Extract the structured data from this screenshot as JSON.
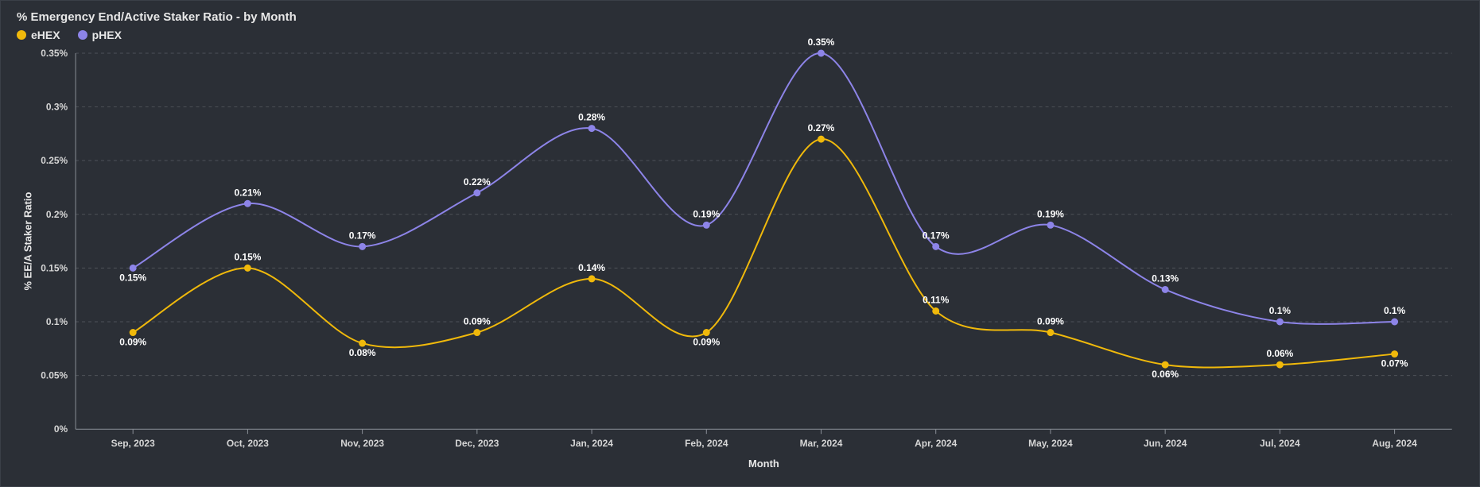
{
  "title": "% Emergency End/Active Staker Ratio - by Month",
  "legend": [
    {
      "key": "eHEX",
      "label": "eHEX",
      "color": "#f0b90b"
    },
    {
      "key": "pHEX",
      "label": "pHEX",
      "color": "#8d84e8"
    }
  ],
  "background_color": "#2b2f36",
  "grid_color": "#6b6f76",
  "text_color": "#e8e8e8",
  "x_axis": {
    "title": "Month",
    "categories": [
      "Sep, 2023",
      "Oct, 2023",
      "Nov, 2023",
      "Dec, 2023",
      "Jan, 2024",
      "Feb, 2024",
      "Mar, 2024",
      "Apr, 2024",
      "May, 2024",
      "Jun, 2024",
      "Jul, 2024",
      "Aug, 2024"
    ]
  },
  "y_axis": {
    "title": "% EE/A Staker Ratio",
    "min": 0,
    "max": 0.35,
    "tick_step": 0.05,
    "tick_labels": [
      "0%",
      "0.05%",
      "0.1%",
      "0.15%",
      "0.2%",
      "0.25%",
      "0.3%",
      "0.35%"
    ]
  },
  "series": {
    "eHEX": {
      "color": "#f0b90b",
      "marker_color": "#f0b90b",
      "marker_stroke": "#f0b90b",
      "values": [
        0.09,
        0.15,
        0.08,
        0.09,
        0.14,
        0.09,
        0.27,
        0.11,
        0.09,
        0.06,
        0.06,
        0.07
      ],
      "labels": [
        "0.09%",
        "0.15%",
        "0.08%",
        "0.09%",
        "0.14%",
        "0.09%",
        "0.27%",
        "0.11%",
        "0.09%",
        "0.06%",
        "0.06%",
        "0.07%"
      ],
      "label_dy": {
        "0": 16,
        "1": -10,
        "2": 16,
        "3": -10,
        "4": -10,
        "5": 16,
        "6": -10,
        "7": -10,
        "8": -10,
        "9": 16,
        "10": -10,
        "11": 16
      }
    },
    "pHEX": {
      "color": "#8d84e8",
      "marker_color": "#8d84e8",
      "marker_stroke": "#8d84e8",
      "values": [
        0.15,
        0.21,
        0.17,
        0.22,
        0.28,
        0.19,
        0.35,
        0.17,
        0.19,
        0.13,
        0.1,
        0.1
      ],
      "labels": [
        "0.15%",
        "0.21%",
        "0.17%",
        "0.22%",
        "0.28%",
        "0.19%",
        "0.35%",
        "0.17%",
        "0.19%",
        "0.13%",
        "0.1%",
        "0.1%"
      ],
      "label_dy": {
        "0": 16,
        "1": -10,
        "2": -10,
        "3": -10,
        "4": -10,
        "5": -10,
        "6": -10,
        "7": -10,
        "8": -10,
        "9": -10,
        "10": -10,
        "11": -10
      }
    }
  },
  "spline_smooth": true,
  "marker_radius": 4
}
